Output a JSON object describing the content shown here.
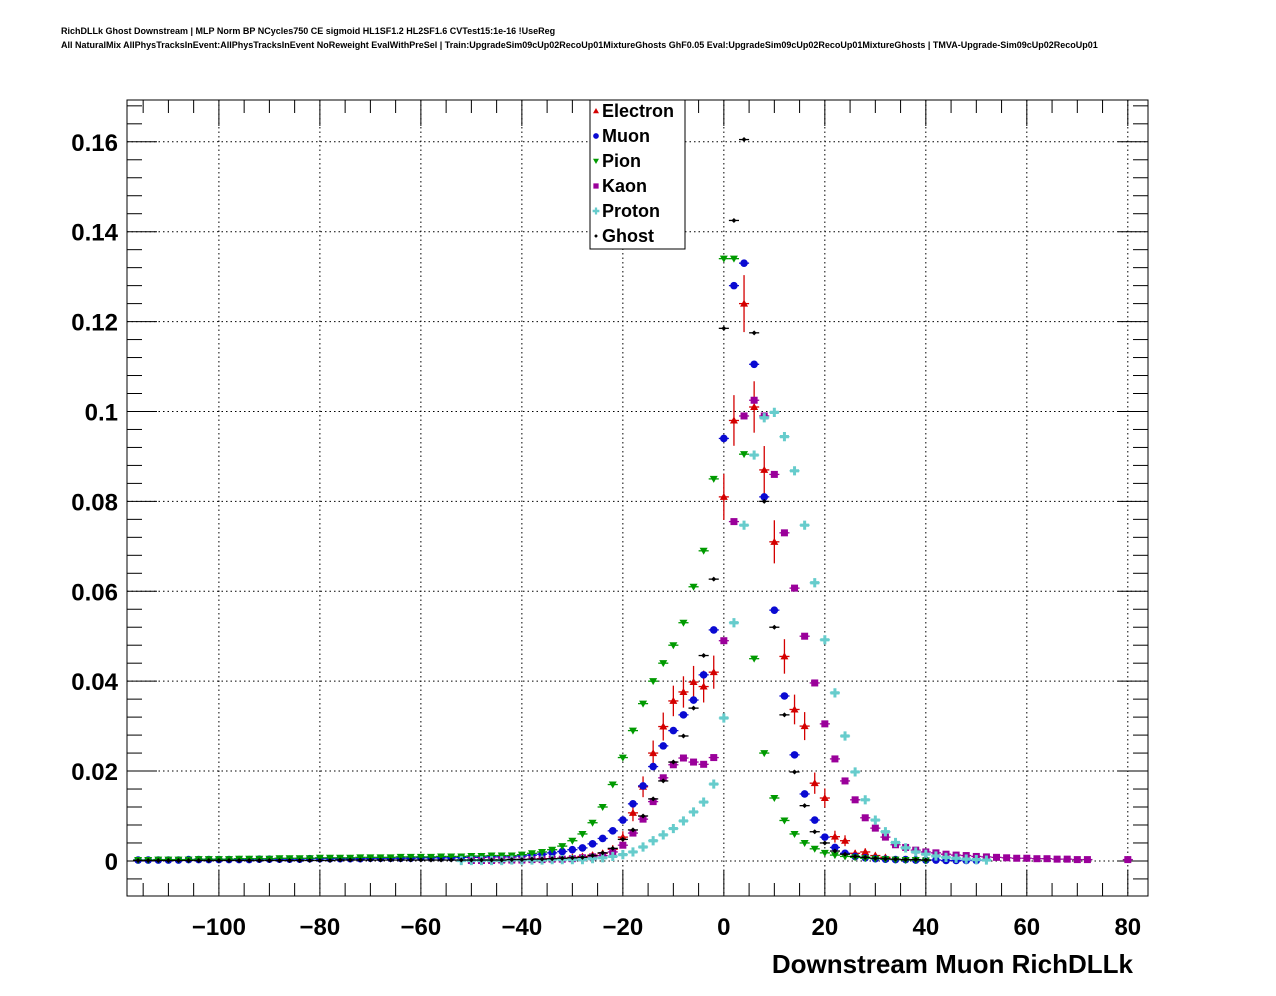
{
  "header": {
    "line1": "RichDLLk Ghost Downstream | MLP Norm BP NCycles750 CE sigmoid HL1SF1.2 HL2SF1.6 CVTest15:1e-16 !UseReg",
    "line2": "All NaturalMix AllPhysTracksInEvent:AllPhysTracksInEvent NoReweight EvalWithPreSel | Train:UpgradeSim09cUp02RecoUp01MixtureGhosts GhF0.05 Eval:UpgradeSim09cUp02RecoUp01MixtureGhosts | TMVA-Upgrade-Sim09cUp02RecoUp01"
  },
  "chart_data": {
    "type": "scatter",
    "title": "",
    "xlabel": "Downstream Muon RichDLLk",
    "ylabel": "",
    "xlim": [
      -118.2,
      84
    ],
    "ylim": [
      -0.0078,
      0.1693
    ],
    "grid": true,
    "legend_position": "top-center",
    "x_ticks": [
      -100,
      -80,
      -60,
      -40,
      -20,
      0,
      20,
      40,
      60,
      80
    ],
    "x_tick_labels": [
      "−100",
      "−80",
      "−60",
      "−40",
      "−20",
      "0",
      "20",
      "40",
      "60",
      "80"
    ],
    "y_ticks": [
      0,
      0.02,
      0.04,
      0.06,
      0.08,
      0.1,
      0.12,
      0.14,
      0.16
    ],
    "y_tick_labels": [
      "0",
      "0.02",
      "0.04",
      "0.06",
      "0.08",
      "0.1",
      "0.12",
      "0.14",
      "0.16"
    ],
    "bin_width": 2,
    "series": [
      {
        "name": "Electron",
        "marker": "triangle-up",
        "color": "#d40000",
        "x_start": -46,
        "err_scale": 0.018,
        "values": [
          0.0003,
          0.0003,
          0.0004,
          0.0004,
          0.0004,
          0.0005,
          0.0005,
          0.0006,
          0.0008,
          0.001,
          0.0013,
          0.0017,
          0.0026,
          0.0053,
          0.0107,
          0.0165,
          0.024,
          0.0299,
          0.0356,
          0.0376,
          0.0398,
          0.0388,
          0.042,
          0.081,
          0.098,
          0.124,
          0.101,
          0.087,
          0.071,
          0.0455,
          0.0337,
          0.03,
          0.0173,
          0.014,
          0.0054,
          0.0045,
          0.0017,
          0.002,
          0.0012,
          0.0008
        ]
      },
      {
        "name": "Muon",
        "marker": "circle",
        "color": "#0a0ad2",
        "x_start": -116,
        "values": [
          0.0002,
          0.0002,
          0.0002,
          0.0002,
          0.0002,
          0.0003,
          0.0003,
          0.0003,
          0.0003,
          0.0003,
          0.0003,
          0.0003,
          0.0004,
          0.0004,
          0.0004,
          0.0004,
          0.0004,
          0.0005,
          0.0005,
          0.0005,
          0.0005,
          0.0005,
          0.0005,
          0.0006,
          0.0006,
          0.0006,
          0.0006,
          0.0006,
          0.0007,
          0.0007,
          0.0007,
          0.0007,
          0.0008,
          0.0008,
          0.0008,
          0.0009,
          0.0009,
          0.0009,
          0.0011,
          0.0013,
          0.0015,
          0.0018,
          0.0021,
          0.0025,
          0.0029,
          0.0038,
          0.005,
          0.0067,
          0.0091,
          0.0127,
          0.0167,
          0.021,
          0.0256,
          0.029,
          0.0325,
          0.0358,
          0.0414,
          0.0514,
          0.094,
          0.128,
          0.133,
          0.1105,
          0.081,
          0.0558,
          0.0367,
          0.0236,
          0.0149,
          0.0091,
          0.0053,
          0.003,
          0.0017,
          0.001,
          0.0007,
          0.0005,
          0.0004,
          0.0003,
          0.0003,
          0.0002,
          0.0002,
          0.0002,
          0.0001,
          0.0001,
          0.0001,
          0.0001
        ]
      },
      {
        "name": "Pion",
        "marker": "triangle-down",
        "color": "#009a00",
        "x_start": -116,
        "values": [
          0.0002,
          0.0002,
          0.0003,
          0.0003,
          0.0003,
          0.0003,
          0.0004,
          0.0004,
          0.0004,
          0.0004,
          0.0005,
          0.0005,
          0.0005,
          0.0005,
          0.0006,
          0.0006,
          0.0006,
          0.0006,
          0.0007,
          0.0007,
          0.0007,
          0.0007,
          0.0008,
          0.0008,
          0.0008,
          0.0008,
          0.0009,
          0.0009,
          0.0009,
          0.0009,
          0.001,
          0.001,
          0.001,
          0.0011,
          0.0011,
          0.0012,
          0.0012,
          0.0012,
          0.0014,
          0.0017,
          0.002,
          0.0025,
          0.0033,
          0.0045,
          0.006,
          0.0085,
          0.012,
          0.017,
          0.023,
          0.029,
          0.035,
          0.04,
          0.044,
          0.048,
          0.053,
          0.061,
          0.069,
          0.085,
          0.134,
          0.134,
          0.0905,
          0.045,
          0.024,
          0.014,
          0.009,
          0.006,
          0.004,
          0.0027,
          0.0018,
          0.0013,
          0.001,
          0.0008,
          0.0006,
          0.0005,
          0.0004,
          0.0003,
          0.0002,
          0.0002,
          0.0001
        ]
      },
      {
        "name": "Kaon",
        "marker": "square",
        "color": "#9a009a",
        "x_start": -50,
        "values": [
          0.0001,
          0.0001,
          0.0001,
          0.0002,
          0.0002,
          0.0002,
          0.0003,
          0.0003,
          0.0004,
          0.0004,
          0.0005,
          0.0007,
          0.0009,
          0.0012,
          0.002,
          0.0035,
          0.0062,
          0.0093,
          0.0132,
          0.0185,
          0.0214,
          0.0229,
          0.022,
          0.0215,
          0.023,
          0.049,
          0.0755,
          0.099,
          0.1025,
          0.099,
          0.086,
          0.073,
          0.0607,
          0.05,
          0.0396,
          0.0305,
          0.0227,
          0.0178,
          0.0136,
          0.0096,
          0.0073,
          0.0053,
          0.0036,
          0.003,
          0.0024,
          0.002,
          0.0018,
          0.0015,
          0.0013,
          0.0012,
          0.001,
          0.0009,
          0.0008,
          0.0007,
          0.0006,
          0.0006,
          0.0005,
          0.0005,
          0.0004,
          0.0004,
          0.0003,
          0.0003,
          0,
          0,
          0,
          0.0003
        ]
      },
      {
        "name": "Proton",
        "marker": "cross",
        "color": "#66cccc",
        "x_start": -52,
        "values": [
          0.0001,
          0.0001,
          0.0001,
          0.0001,
          0.0001,
          0.0002,
          0.0002,
          0.0002,
          0.0002,
          0.0003,
          0.0003,
          0.0003,
          0.0003,
          0.0005,
          0.0007,
          0.001,
          0.0014,
          0.002,
          0.0031,
          0.0045,
          0.0058,
          0.0072,
          0.0089,
          0.0109,
          0.0131,
          0.0171,
          0.0318,
          0.053,
          0.0747,
          0.0903,
          0.0986,
          0.0998,
          0.0944,
          0.0868,
          0.0747,
          0.0619,
          0.0492,
          0.0374,
          0.0278,
          0.0198,
          0.0136,
          0.0091,
          0.0065,
          0.0041,
          0.0029,
          0.002,
          0.0015,
          0.0011,
          0.0008,
          0.0006,
          0.0004,
          0.0003,
          0.0002
        ]
      },
      {
        "name": "Ghost",
        "marker": "diamond",
        "color": "#000000",
        "x_start": -116,
        "values": [
          0.0001,
          0.0001,
          0.0001,
          0.0001,
          0.0001,
          0.0001,
          0.0001,
          0.0001,
          0.0001,
          0.0001,
          0.0001,
          0.0001,
          0.0001,
          0.0001,
          0.0001,
          0.0001,
          0.0001,
          0.0001,
          0.0001,
          0.0001,
          0.0002,
          0.0002,
          0.0002,
          0.0002,
          0.0002,
          0.0002,
          0.0002,
          0.0002,
          0.0002,
          0.0002,
          0.0002,
          0.0002,
          0.0002,
          0.0002,
          0.0002,
          0.0002,
          0.0002,
          0.0003,
          0.0003,
          0.0004,
          0.0004,
          0.0005,
          0.0006,
          0.0007,
          0.0008,
          0.0012,
          0.0018,
          0.0028,
          0.0048,
          0.0069,
          0.01,
          0.0138,
          0.0178,
          0.022,
          0.0278,
          0.034,
          0.0457,
          0.0627,
          0.1185,
          0.1425,
          0.1605,
          0.1175,
          0.08,
          0.052,
          0.0325,
          0.0198,
          0.0123,
          0.0065,
          0.004,
          0.0022,
          0.0015,
          0.001,
          0.0008,
          0.0006,
          0.0005,
          0.0004,
          0.0003,
          0.0003,
          0.0002
        ]
      }
    ]
  }
}
